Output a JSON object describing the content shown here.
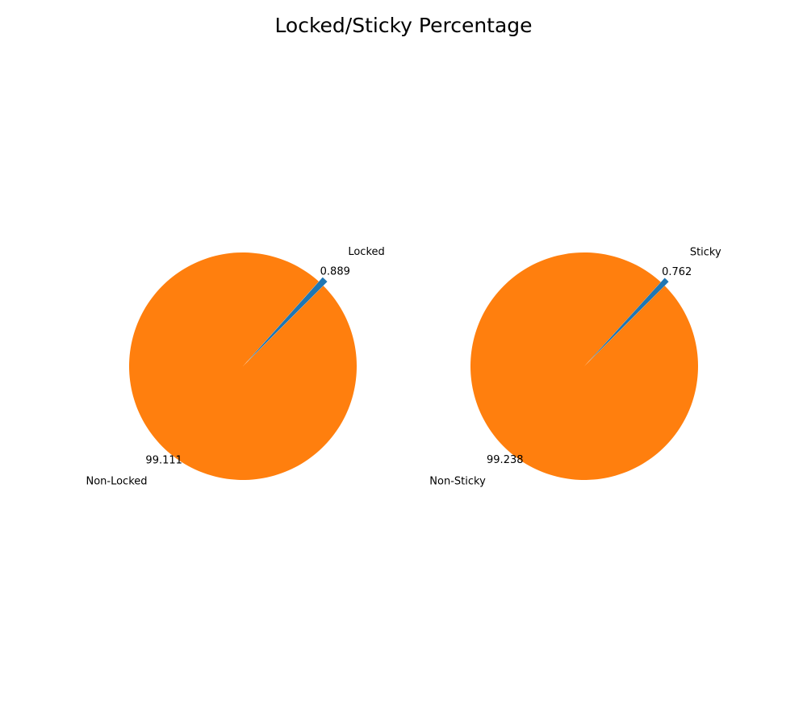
{
  "figure": {
    "title": "Locked/Sticky Percentage"
  },
  "colors": {
    "first_slice": "#1f77b4",
    "second_slice": "#ff7f0e",
    "background": "#ffffff"
  },
  "chart_data": [
    {
      "type": "pie",
      "labels": [
        "Locked",
        "Non-Locked"
      ],
      "values": [
        0.889,
        99.111
      ],
      "value_labels": [
        "0.889",
        "99.111"
      ],
      "colors": [
        "#1f77b4",
        "#ff7f0e"
      ],
      "start_angle_deg": 45,
      "direction": "counterclockwise",
      "explode": [
        0.05,
        0
      ]
    },
    {
      "type": "pie",
      "labels": [
        "Sticky",
        "Non-Sticky"
      ],
      "values": [
        0.762,
        99.238
      ],
      "value_labels": [
        "0.762",
        "99.238"
      ],
      "colors": [
        "#1f77b4",
        "#ff7f0e"
      ],
      "start_angle_deg": 45,
      "direction": "counterclockwise",
      "explode": [
        0.05,
        0
      ]
    }
  ]
}
